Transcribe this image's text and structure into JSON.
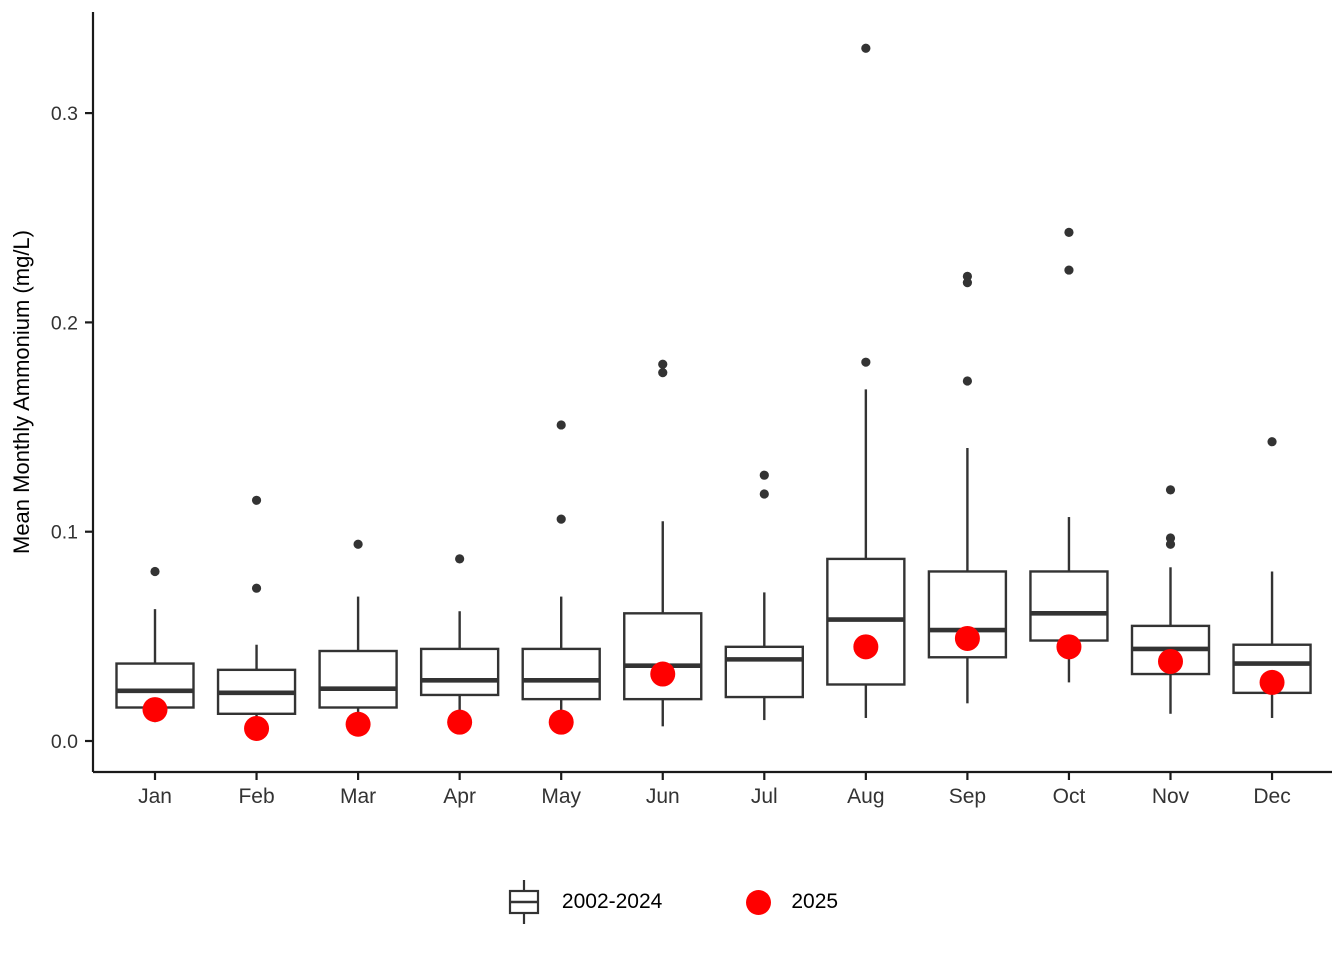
{
  "chart_data": {
    "type": "boxplot",
    "title": "",
    "xlabel": "",
    "ylabel": "Mean Monthly Ammonium (mg/L)",
    "y_ticks": [
      "0.0",
      "0.1",
      "0.2",
      "0.3"
    ],
    "ylim": [
      -0.015,
      0.348
    ],
    "grid": "off",
    "legend_position": "bottom",
    "categories": [
      "Jan",
      "Feb",
      "Mar",
      "Apr",
      "May",
      "Jun",
      "Jul",
      "Aug",
      "Sep",
      "Oct",
      "Nov",
      "Dec"
    ],
    "series": [
      {
        "name": "2002-2024",
        "type": "box",
        "stats": [
          {
            "low": 0.009,
            "q1": 0.016,
            "median": 0.024,
            "q3": 0.037,
            "high": 0.063,
            "outliers": [
              0.081
            ]
          },
          {
            "low": 0.006,
            "q1": 0.013,
            "median": 0.023,
            "q3": 0.034,
            "high": 0.046,
            "outliers": [
              0.115,
              0.073
            ]
          },
          {
            "low": 0.006,
            "q1": 0.016,
            "median": 0.025,
            "q3": 0.043,
            "high": 0.069,
            "outliers": [
              0.094
            ]
          },
          {
            "low": 0.006,
            "q1": 0.022,
            "median": 0.029,
            "q3": 0.044,
            "high": 0.062,
            "outliers": [
              0.087
            ]
          },
          {
            "low": 0.007,
            "q1": 0.02,
            "median": 0.029,
            "q3": 0.044,
            "high": 0.069,
            "outliers": [
              0.151,
              0.106
            ]
          },
          {
            "low": 0.007,
            "q1": 0.02,
            "median": 0.036,
            "q3": 0.061,
            "high": 0.105,
            "outliers": [
              0.18,
              0.176
            ]
          },
          {
            "low": 0.01,
            "q1": 0.021,
            "median": 0.039,
            "q3": 0.045,
            "high": 0.071,
            "outliers": [
              0.127,
              0.118
            ]
          },
          {
            "low": 0.011,
            "q1": 0.027,
            "median": 0.058,
            "q3": 0.087,
            "high": 0.168,
            "outliers": [
              0.331,
              0.181
            ]
          },
          {
            "low": 0.018,
            "q1": 0.04,
            "median": 0.053,
            "q3": 0.081,
            "high": 0.14,
            "outliers": [
              0.222,
              0.219,
              0.172
            ]
          },
          {
            "low": 0.028,
            "q1": 0.048,
            "median": 0.061,
            "q3": 0.081,
            "high": 0.107,
            "outliers": [
              0.243,
              0.225
            ]
          },
          {
            "low": 0.013,
            "q1": 0.032,
            "median": 0.044,
            "q3": 0.055,
            "high": 0.083,
            "outliers": [
              0.12,
              0.097,
              0.094
            ]
          },
          {
            "low": 0.011,
            "q1": 0.023,
            "median": 0.037,
            "q3": 0.046,
            "high": 0.081,
            "outliers": [
              0.143
            ]
          }
        ]
      },
      {
        "name": "2025",
        "type": "point",
        "values": [
          0.015,
          0.006,
          0.008,
          0.009,
          0.009,
          0.032,
          null,
          0.045,
          0.049,
          0.045,
          0.038,
          0.028
        ]
      }
    ],
    "colors": {
      "box_stroke": "#333333",
      "box_fill": "#ffffff",
      "median": "#333333",
      "outlier": "#333333",
      "point_2025": "#ff0000",
      "axis": "#1a1a1a",
      "tick_text": "#333333",
      "axis_title_text": "#000000"
    }
  }
}
